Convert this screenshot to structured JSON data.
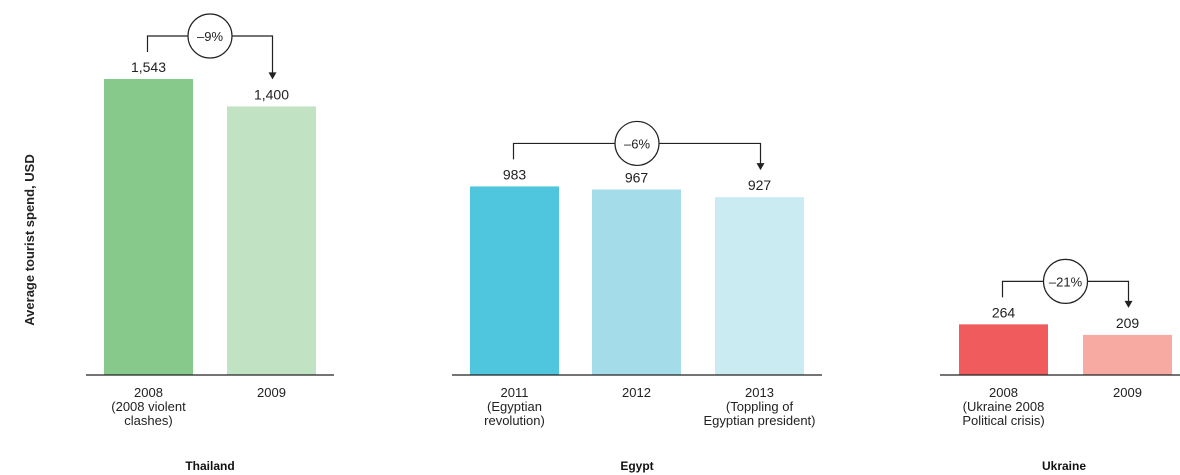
{
  "chart_data": {
    "type": "bar",
    "ylabel": "Average tourist spend, USD",
    "colors": {
      "thailand": [
        "#86c98b",
        "#c2e3c3"
      ],
      "egypt": [
        "#4fc6de",
        "#a5dcea",
        "#cbebf2"
      ],
      "ukraine": [
        "#f05c5e",
        "#f7aaa2"
      ]
    },
    "groups": [
      {
        "name": "Thailand",
        "categories": [
          [
            "2008",
            "(2008 violent",
            "clashes)"
          ],
          [
            "2009"
          ]
        ],
        "values": [
          1543,
          1400
        ],
        "value_labels": [
          "1,543",
          "1,400"
        ],
        "change": "–9%"
      },
      {
        "name": "Egypt",
        "categories": [
          [
            "2011",
            "(Egyptian",
            "revolution)"
          ],
          [
            "2012"
          ],
          [
            "2013",
            "(Toppling of",
            "Egyptian president)"
          ]
        ],
        "values": [
          983,
          967,
          927
        ],
        "value_labels": [
          "983",
          "967",
          "927"
        ],
        "change": "–6%"
      },
      {
        "name": "Ukraine",
        "categories": [
          [
            "2008",
            "(Ukraine 2008",
            "Political crisis)"
          ],
          [
            "2009"
          ]
        ],
        "values": [
          264,
          209
        ],
        "value_labels": [
          "264",
          "209"
        ],
        "change": "–21%"
      }
    ]
  }
}
